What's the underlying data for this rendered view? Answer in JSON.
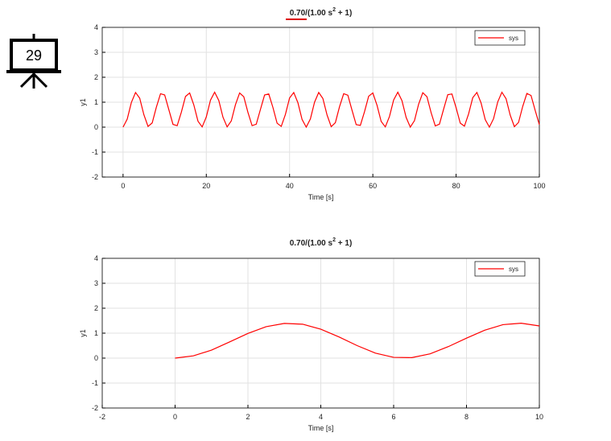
{
  "slide_number": "29",
  "chart_data": [
    {
      "type": "line",
      "title": [
        "0.70/(1.00 s",
        "2",
        " + 1)"
      ],
      "x_label": "Time [s]",
      "y_label": "y1",
      "x": [
        0,
        1,
        2,
        3,
        4,
        5,
        6,
        7,
        8,
        9,
        10,
        11,
        12,
        13,
        14,
        15,
        16,
        17,
        18,
        19,
        20,
        21,
        22,
        23,
        24,
        25,
        26,
        27,
        28,
        29,
        30,
        31,
        32,
        33,
        34,
        35,
        36,
        37,
        38,
        39,
        40,
        41,
        42,
        43,
        44,
        45,
        46,
        47,
        48,
        49,
        50,
        51,
        52,
        53,
        54,
        55,
        56,
        57,
        58,
        59,
        60,
        61,
        62,
        63,
        64,
        65,
        66,
        67,
        68,
        69,
        70,
        71,
        72,
        73,
        74,
        75,
        76,
        77,
        78,
        79,
        80,
        81,
        82,
        83,
        84,
        85,
        86,
        87,
        88,
        89,
        90,
        91,
        92,
        93,
        94,
        95,
        96,
        97,
        98,
        99,
        100
      ],
      "series": [
        {
          "name": "sys",
          "color": "#ff0000",
          "values": [
            0,
            0.32,
            0.99,
            1.39,
            1.16,
            0.5,
            0.03,
            0.17,
            0.8,
            1.34,
            1.29,
            0.7,
            0.11,
            0.06,
            0.6,
            1.23,
            1.37,
            0.89,
            0.24,
            0.01,
            0.41,
            1.08,
            1.4,
            1.07,
            0.4,
            0.01,
            0.25,
            0.9,
            1.37,
            1.22,
            0.59,
            0.06,
            0.12,
            0.71,
            1.29,
            1.33,
            0.79,
            0.16,
            0.03,
            0.51,
            1.17,
            1.39,
            0.98,
            0.31,
            0,
            0.33,
            1.0,
            1.39,
            1.15,
            0.49,
            0.02,
            0.18,
            0.82,
            1.34,
            1.28,
            0.68,
            0.1,
            0.07,
            0.62,
            1.24,
            1.37,
            0.88,
            0.23,
            0.01,
            0.43,
            1.09,
            1.4,
            1.06,
            0.39,
            0,
            0.26,
            0.92,
            1.38,
            1.22,
            0.58,
            0.05,
            0.12,
            0.72,
            1.3,
            1.33,
            0.78,
            0.16,
            0.04,
            0.53,
            1.18,
            1.39,
            0.97,
            0.3,
            0,
            0.34,
            1.01,
            1.4,
            1.14,
            0.48,
            0.02,
            0.19,
            0.83,
            1.35,
            1.27,
            0.67,
            0.1
          ]
        }
      ],
      "xlim": [
        -5,
        100
      ],
      "xticks": [
        0,
        20,
        40,
        60,
        80,
        100
      ],
      "ylim": [
        -2,
        4
      ],
      "yticks": [
        -2,
        -1,
        0,
        1,
        2,
        3,
        4
      ],
      "grid": true,
      "legend": "upper right"
    },
    {
      "type": "line",
      "title": [
        "0.70/(1.00 s",
        "2",
        " + 1)"
      ],
      "x_label": "Time [s]",
      "y_label": "y1",
      "x": [
        0,
        0.5,
        1,
        1.5,
        2,
        2.5,
        3,
        3.5,
        4,
        4.5,
        5,
        5.5,
        6,
        6.5,
        7,
        7.5,
        8,
        8.5,
        9,
        9.5,
        10
      ],
      "series": [
        {
          "name": "sys",
          "color": "#ff0000",
          "values": [
            0,
            0.09,
            0.32,
            0.65,
            0.99,
            1.26,
            1.39,
            1.36,
            1.16,
            0.85,
            0.5,
            0.2,
            0.03,
            0.02,
            0.17,
            0.46,
            0.8,
            1.12,
            1.34,
            1.4,
            1.29
          ]
        }
      ],
      "xlim": [
        -2,
        10
      ],
      "xticks": [
        -2,
        0,
        2,
        4,
        6,
        8,
        10
      ],
      "ylim": [
        -2,
        4
      ],
      "yticks": [
        -2,
        -1,
        0,
        1,
        2,
        3,
        4
      ],
      "grid": true,
      "legend": "upper right"
    }
  ]
}
